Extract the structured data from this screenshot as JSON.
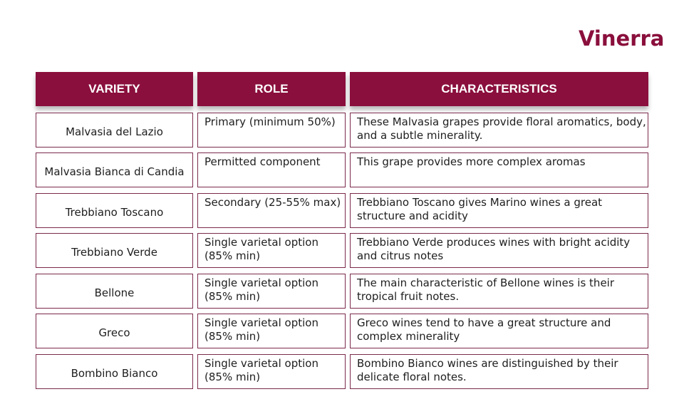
{
  "brand": {
    "logo_text": "Vinerra",
    "color": "#8a0f3c"
  },
  "table": {
    "headers": [
      "VARIETY",
      "ROLE",
      "CHARACTERISTICS"
    ],
    "rows": [
      {
        "variety": "Malvasia del Lazio",
        "role": "Primary (minimum 50%)",
        "characteristics": "These Malvasia grapes provide floral aromatics, body, and a subtle minerality."
      },
      {
        "variety": "Malvasia Bianca di Candia",
        "role": "Permitted component",
        "characteristics": "This grape provides more complex aromas"
      },
      {
        "variety": "Trebbiano Toscano",
        "role": "Secondary (25-55% max)",
        "characteristics": "Trebbiano Toscano gives Marino wines a great structure and acidity"
      },
      {
        "variety": "Trebbiano Verde",
        "role": "Single varietal option (85% min)",
        "characteristics": "Trebbiano Verde produces wines with bright acidity and citrus notes"
      },
      {
        "variety": "Bellone",
        "role": "Single varietal option (85% min)",
        "characteristics": "The main characteristic of Bellone wines is their tropical fruit notes."
      },
      {
        "variety": "Greco",
        "role": "Single varietal option (85% min)",
        "characteristics": "Greco wines tend to have a great structure and complex minerality"
      },
      {
        "variety": "Bombino Bianco",
        "role": "Single varietal option (85% min)",
        "characteristics": "Bombino Bianco wines are distinguished by their delicate floral notes."
      }
    ]
  }
}
